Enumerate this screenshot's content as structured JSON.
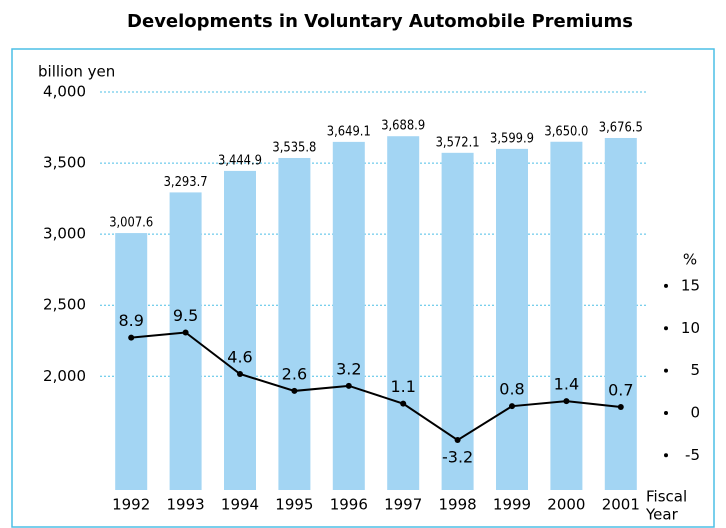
{
  "chart_data": {
    "type": "bar",
    "title": "Developments in Voluntary Automobile Premiums",
    "y_label": "billion yen",
    "y2_label": "%",
    "x_label": [
      "Fiscal",
      "Year"
    ],
    "categories": [
      "1992",
      "1993",
      "1994",
      "1995",
      "1996",
      "1997",
      "1998",
      "1999",
      "2000",
      "2001"
    ],
    "series": [
      {
        "type": "bar",
        "color": "#a3d5f3",
        "values": [
          3007.6,
          3293.7,
          3444.9,
          3535.8,
          3649.1,
          3688.9,
          3572.1,
          3599.9,
          3650.0,
          3676.5
        ],
        "value_labels": [
          "3,007.6",
          "3,293.7",
          "3,444.9",
          "3,535.8",
          "3,649.1",
          "3,688.9",
          "3,572.1",
          "3,599.9",
          "3,650.0",
          "3,676.5"
        ]
      },
      {
        "type": "line",
        "axis": "y2",
        "color": "#000000",
        "values": [
          8.9,
          9.5,
          4.6,
          2.6,
          3.2,
          1.1,
          -3.2,
          0.8,
          1.4,
          0.7
        ]
      }
    ],
    "ylim": [
      1200,
      4000
    ],
    "yticks": [
      {
        "value": 2000,
        "label": "2,000"
      },
      {
        "value": 2500,
        "label": "2,500"
      },
      {
        "value": 3000,
        "label": "3,000"
      },
      {
        "value": 3500,
        "label": "3,500"
      },
      {
        "value": 4000,
        "label": "4,000"
      }
    ],
    "y2lim": [
      -9.1,
      37.9
    ],
    "y2ticks": [
      -5,
      0,
      5,
      10,
      15
    ],
    "grid": true
  }
}
